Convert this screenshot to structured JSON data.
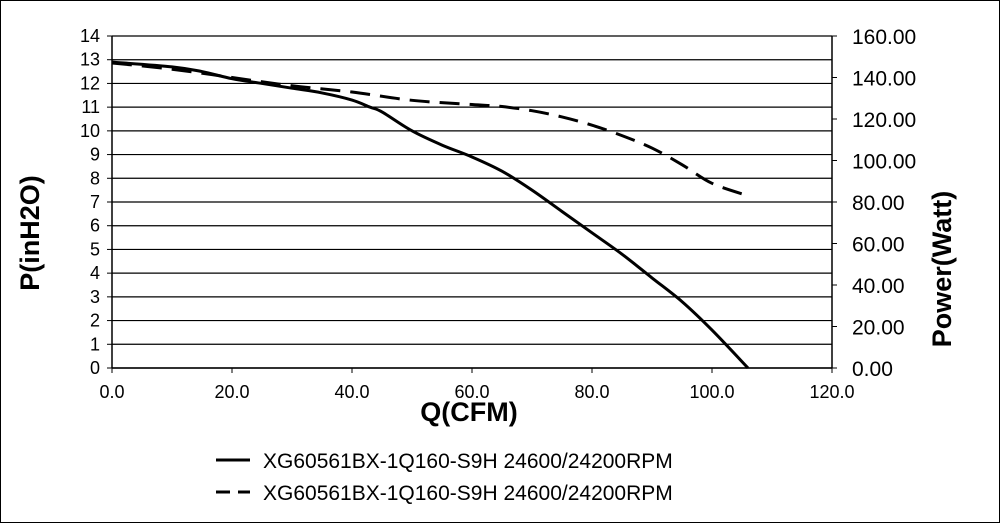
{
  "chart_data": {
    "type": "line",
    "title": "",
    "xlabel": "Q(CFM)",
    "ylabel": "P(inH2O)",
    "y2label": "Power(Watt)",
    "xlim": [
      0,
      120
    ],
    "ylim": [
      0,
      14
    ],
    "y2lim": [
      0,
      160
    ],
    "x_tick_labels": [
      "0.0",
      "20.0",
      "40.0",
      "60.0",
      "80.0",
      "100.0",
      "120.0"
    ],
    "y_tick_labels": [
      "0",
      "1",
      "2",
      "3",
      "4",
      "5",
      "6",
      "7",
      "8",
      "9",
      "10",
      "11",
      "12",
      "13",
      "14"
    ],
    "y2_tick_labels": [
      "0.00",
      "20.00",
      "40.00",
      "60.00",
      "80.00",
      "100.00",
      "120.00",
      "140.00",
      "160.00"
    ],
    "grid": "horizontal",
    "legend_position": "bottom",
    "series": [
      {
        "name": "XG60561BX-1Q160-S9H 24600/24200RPM",
        "axis": "left",
        "style": "solid",
        "color": "#000000",
        "x": [
          0,
          10,
          15,
          20,
          25,
          30,
          35,
          40,
          43,
          45,
          50,
          55,
          60,
          65,
          70,
          75,
          80,
          85,
          90,
          95,
          100,
          106
        ],
        "y": [
          12.9,
          12.7,
          12.5,
          12.2,
          12.0,
          11.8,
          11.6,
          11.3,
          11.0,
          10.8,
          10.0,
          9.4,
          8.9,
          8.3,
          7.5,
          6.6,
          5.7,
          4.8,
          3.8,
          2.8,
          1.6,
          0
        ]
      },
      {
        "name": "XG60561BX-1Q160-S9H 24600/24200RPM",
        "axis": "right",
        "style": "dashed",
        "color": "#000000",
        "x": [
          0,
          10,
          20,
          30,
          40,
          50,
          60,
          65,
          70,
          75,
          80,
          85,
          90,
          95,
          100,
          106
        ],
        "y": [
          147,
          144,
          140,
          136,
          133,
          129,
          127,
          126,
          124,
          121,
          117,
          112,
          106,
          98,
          89,
          83
        ]
      }
    ]
  }
}
